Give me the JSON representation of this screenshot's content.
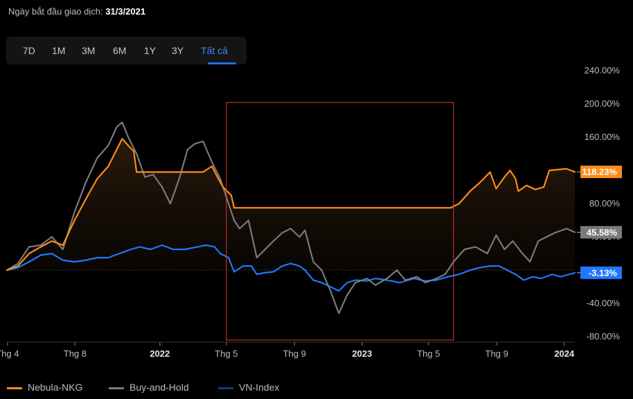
{
  "header": {
    "start_label": "Ngày bắt đầu giao dịch:",
    "start_value": "31/3/2021"
  },
  "tabs": [
    {
      "label": "7D"
    },
    {
      "label": "1M"
    },
    {
      "label": "3M"
    },
    {
      "label": "6M"
    },
    {
      "label": "1Y"
    },
    {
      "label": "3Y"
    },
    {
      "label": "Tất cả",
      "active": true
    }
  ],
  "chart_data": {
    "type": "line",
    "ylim": [
      -80,
      240
    ],
    "y_ticks": [
      "240.00%",
      "200.00%",
      "160.00%",
      "120.00%",
      "80.00%",
      "40.00%",
      "0.00%",
      "-40.00%",
      "-80.00%"
    ],
    "y_tick_values": [
      240,
      200,
      160,
      120,
      80,
      40,
      0,
      -40,
      -80
    ],
    "x_ticks": [
      {
        "label": "Thg 4",
        "date": "2021-04-01",
        "bold": false
      },
      {
        "label": "Thg 8",
        "date": "2021-08-01",
        "bold": false
      },
      {
        "label": "2022",
        "date": "2022-01-01",
        "bold": true
      },
      {
        "label": "Thg 5",
        "date": "2022-05-01",
        "bold": false
      },
      {
        "label": "Thg 9",
        "date": "2022-09-01",
        "bold": false
      },
      {
        "label": "2023",
        "date": "2023-01-01",
        "bold": true
      },
      {
        "label": "Thg 5",
        "date": "2023-05-01",
        "bold": false
      },
      {
        "label": "Thg 9",
        "date": "2023-09-01",
        "bold": false
      },
      {
        "label": "2024",
        "date": "2024-01-01",
        "bold": true
      }
    ],
    "x_range": [
      "2021-03-31",
      "2024-01-20"
    ],
    "highlight_range": [
      "2022-05-01",
      "2023-06-15"
    ],
    "series": [
      {
        "name": "Nebula-NKG",
        "color": "#ff8c1a",
        "last_label": "118.23%",
        "points": [
          [
            "2021-03-31",
            0
          ],
          [
            "2021-04-20",
            5
          ],
          [
            "2021-05-10",
            20
          ],
          [
            "2021-05-31",
            28
          ],
          [
            "2021-06-20",
            35
          ],
          [
            "2021-07-10",
            30
          ],
          [
            "2021-07-31",
            60
          ],
          [
            "2021-08-20",
            85
          ],
          [
            "2021-09-10",
            110
          ],
          [
            "2021-09-30",
            125
          ],
          [
            "2021-10-15",
            145
          ],
          [
            "2021-10-25",
            158
          ],
          [
            "2021-11-05",
            150
          ],
          [
            "2021-11-15",
            143
          ],
          [
            "2021-11-20",
            118
          ],
          [
            "2022-03-20",
            118
          ],
          [
            "2022-04-05",
            125
          ],
          [
            "2022-04-15",
            112
          ],
          [
            "2022-04-25",
            100
          ],
          [
            "2022-05-10",
            90
          ],
          [
            "2022-05-15",
            75
          ],
          [
            "2023-06-10",
            75
          ],
          [
            "2023-06-25",
            80
          ],
          [
            "2023-07-15",
            95
          ],
          [
            "2023-08-01",
            105
          ],
          [
            "2023-08-20",
            118
          ],
          [
            "2023-08-31",
            98
          ],
          [
            "2023-09-15",
            112
          ],
          [
            "2023-09-25",
            120
          ],
          [
            "2023-10-05",
            110
          ],
          [
            "2023-10-10",
            95
          ],
          [
            "2023-10-25",
            102
          ],
          [
            "2023-11-10",
            97
          ],
          [
            "2023-11-25",
            100
          ],
          [
            "2023-12-05",
            120
          ],
          [
            "2024-01-05",
            122
          ],
          [
            "2024-01-20",
            118.23
          ]
        ]
      },
      {
        "name": "Buy-and-Hold",
        "color": "#7a7a7a",
        "last_label": "45.58%",
        "points": [
          [
            "2021-03-31",
            0
          ],
          [
            "2021-04-20",
            8
          ],
          [
            "2021-05-10",
            28
          ],
          [
            "2021-05-31",
            30
          ],
          [
            "2021-06-20",
            40
          ],
          [
            "2021-07-10",
            25
          ],
          [
            "2021-07-31",
            70
          ],
          [
            "2021-08-20",
            105
          ],
          [
            "2021-09-10",
            135
          ],
          [
            "2021-09-30",
            150
          ],
          [
            "2021-10-15",
            172
          ],
          [
            "2021-10-25",
            178
          ],
          [
            "2021-11-05",
            160
          ],
          [
            "2021-11-20",
            140
          ],
          [
            "2021-12-05",
            112
          ],
          [
            "2021-12-20",
            115
          ],
          [
            "2022-01-05",
            100
          ],
          [
            "2022-01-20",
            80
          ],
          [
            "2022-02-05",
            110
          ],
          [
            "2022-02-20",
            145
          ],
          [
            "2022-03-05",
            152
          ],
          [
            "2022-03-20",
            155
          ],
          [
            "2022-04-05",
            130
          ],
          [
            "2022-04-20",
            110
          ],
          [
            "2022-05-05",
            80
          ],
          [
            "2022-05-15",
            60
          ],
          [
            "2022-05-25",
            50
          ],
          [
            "2022-06-10",
            60
          ],
          [
            "2022-06-25",
            15
          ],
          [
            "2022-07-10",
            25
          ],
          [
            "2022-07-25",
            35
          ],
          [
            "2022-08-10",
            45
          ],
          [
            "2022-08-25",
            50
          ],
          [
            "2022-09-10",
            40
          ],
          [
            "2022-09-20",
            48
          ],
          [
            "2022-10-05",
            10
          ],
          [
            "2022-10-20",
            0
          ],
          [
            "2022-11-05",
            -25
          ],
          [
            "2022-11-20",
            -52
          ],
          [
            "2022-12-05",
            -30
          ],
          [
            "2022-12-20",
            -15
          ],
          [
            "2023-01-10",
            -10
          ],
          [
            "2023-01-25",
            -18
          ],
          [
            "2023-02-15",
            -10
          ],
          [
            "2023-03-05",
            0
          ],
          [
            "2023-03-20",
            -12
          ],
          [
            "2023-04-10",
            -8
          ],
          [
            "2023-04-25",
            -15
          ],
          [
            "2023-05-15",
            -10
          ],
          [
            "2023-05-31",
            -5
          ],
          [
            "2023-06-15",
            10
          ],
          [
            "2023-07-05",
            25
          ],
          [
            "2023-07-25",
            28
          ],
          [
            "2023-08-15",
            20
          ],
          [
            "2023-08-31",
            42
          ],
          [
            "2023-09-15",
            25
          ],
          [
            "2023-09-30",
            35
          ],
          [
            "2023-10-15",
            22
          ],
          [
            "2023-10-31",
            10
          ],
          [
            "2023-11-15",
            35
          ],
          [
            "2023-11-30",
            40
          ],
          [
            "2023-12-15",
            45
          ],
          [
            "2024-01-05",
            50
          ],
          [
            "2024-01-20",
            45.58
          ]
        ]
      },
      {
        "name": "VN-Index",
        "color": "#1f78ff",
        "last_label": "-3.13%",
        "points": [
          [
            "2021-03-31",
            0
          ],
          [
            "2021-04-20",
            3
          ],
          [
            "2021-05-10",
            10
          ],
          [
            "2021-05-31",
            18
          ],
          [
            "2021-06-20",
            20
          ],
          [
            "2021-07-10",
            12
          ],
          [
            "2021-07-31",
            10
          ],
          [
            "2021-08-20",
            12
          ],
          [
            "2021-09-10",
            15
          ],
          [
            "2021-09-30",
            15
          ],
          [
            "2021-10-20",
            20
          ],
          [
            "2021-11-10",
            25
          ],
          [
            "2021-11-25",
            28
          ],
          [
            "2021-12-15",
            25
          ],
          [
            "2022-01-05",
            30
          ],
          [
            "2022-01-25",
            25
          ],
          [
            "2022-02-15",
            25
          ],
          [
            "2022-03-10",
            28
          ],
          [
            "2022-03-25",
            30
          ],
          [
            "2022-04-10",
            28
          ],
          [
            "2022-04-20",
            20
          ],
          [
            "2022-05-05",
            15
          ],
          [
            "2022-05-15",
            -2
          ],
          [
            "2022-05-31",
            5
          ],
          [
            "2022-06-15",
            5
          ],
          [
            "2022-06-25",
            -5
          ],
          [
            "2022-07-10",
            -3
          ],
          [
            "2022-07-25",
            -2
          ],
          [
            "2022-08-10",
            5
          ],
          [
            "2022-08-25",
            8
          ],
          [
            "2022-09-10",
            5
          ],
          [
            "2022-09-20",
            0
          ],
          [
            "2022-10-05",
            -12
          ],
          [
            "2022-10-20",
            -15
          ],
          [
            "2022-11-05",
            -20
          ],
          [
            "2022-11-20",
            -25
          ],
          [
            "2022-12-05",
            -15
          ],
          [
            "2022-12-20",
            -12
          ],
          [
            "2023-01-10",
            -13
          ],
          [
            "2023-01-25",
            -10
          ],
          [
            "2023-02-15",
            -12
          ],
          [
            "2023-03-10",
            -15
          ],
          [
            "2023-04-05",
            -10
          ],
          [
            "2023-04-25",
            -13
          ],
          [
            "2023-05-15",
            -12
          ],
          [
            "2023-06-05",
            -8
          ],
          [
            "2023-06-25",
            -5
          ],
          [
            "2023-07-15",
            0
          ],
          [
            "2023-08-01",
            3
          ],
          [
            "2023-08-20",
            5
          ],
          [
            "2023-09-05",
            5
          ],
          [
            "2023-09-20",
            0
          ],
          [
            "2023-10-05",
            -5
          ],
          [
            "2023-10-20",
            -12
          ],
          [
            "2023-11-05",
            -8
          ],
          [
            "2023-11-20",
            -10
          ],
          [
            "2023-12-10",
            -5
          ],
          [
            "2023-12-25",
            -8
          ],
          [
            "2024-01-10",
            -5
          ],
          [
            "2024-01-20",
            -3.13
          ]
        ]
      }
    ]
  }
}
